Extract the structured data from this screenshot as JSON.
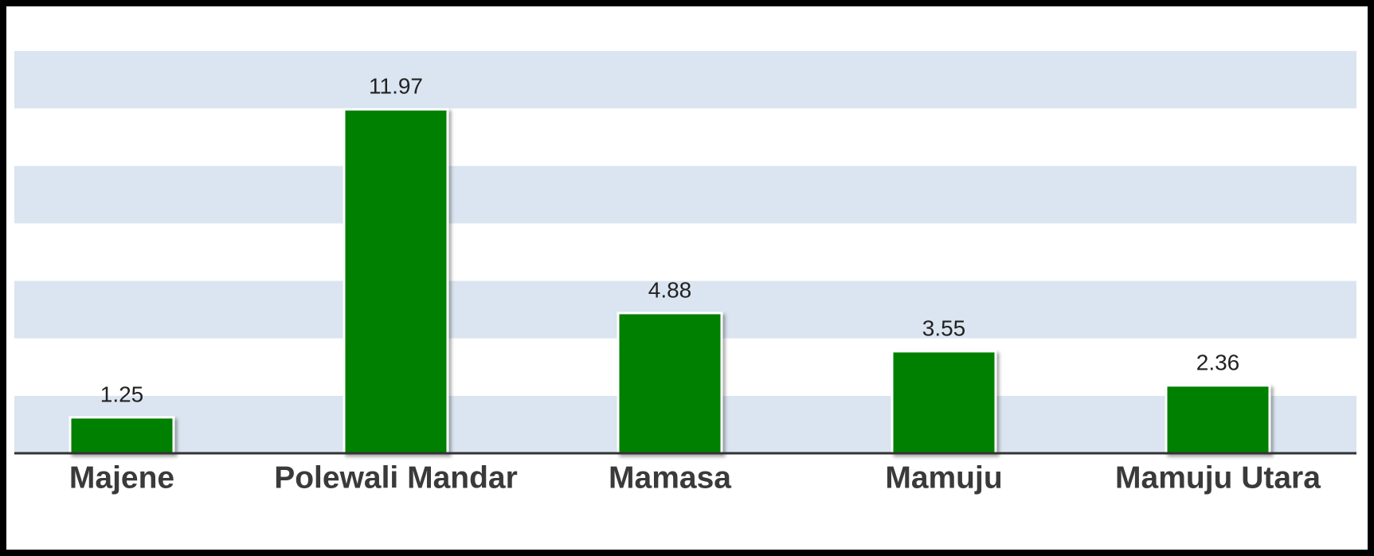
{
  "chart_data": {
    "type": "bar",
    "categories": [
      "Majene",
      "Polewali Mandar",
      "Mamasa",
      "Mamuju",
      "Mamuju Utara"
    ],
    "values": [
      1.25,
      11.97,
      4.88,
      3.55,
      2.36
    ],
    "color": "#008000",
    "band_color": "#dbe5f1",
    "ylim": [
      0,
      14
    ],
    "yticks": [
      0,
      2,
      4,
      6,
      8,
      10,
      12,
      14
    ],
    "grid": true
  }
}
